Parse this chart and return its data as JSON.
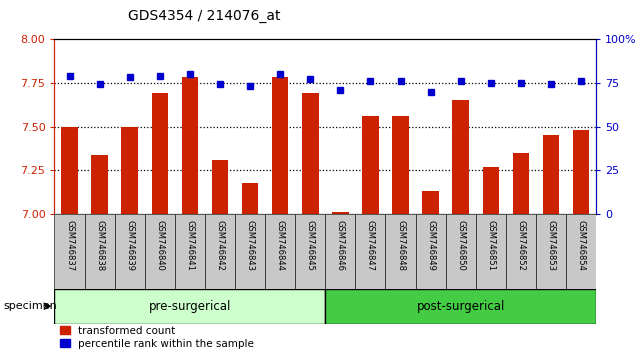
{
  "title": "GDS4354 / 214076_at",
  "samples": [
    "GSM746837",
    "GSM746838",
    "GSM746839",
    "GSM746840",
    "GSM746841",
    "GSM746842",
    "GSM746843",
    "GSM746844",
    "GSM746845",
    "GSM746846",
    "GSM746847",
    "GSM746848",
    "GSM746849",
    "GSM746850",
    "GSM746851",
    "GSM746852",
    "GSM746853",
    "GSM746854"
  ],
  "bar_values": [
    7.5,
    7.34,
    7.5,
    7.69,
    7.78,
    7.31,
    7.18,
    7.78,
    7.69,
    7.01,
    7.56,
    7.56,
    7.13,
    7.65,
    7.27,
    7.35,
    7.45,
    7.48
  ],
  "percentile_values": [
    79,
    74,
    78,
    79,
    80,
    74,
    73,
    80,
    77,
    71,
    76,
    76,
    70,
    76,
    75,
    75,
    74,
    76
  ],
  "pre_surgical_count": 9,
  "ylim_left": [
    7.0,
    8.0
  ],
  "ylim_right": [
    0,
    100
  ],
  "yticks_left": [
    7.0,
    7.25,
    7.5,
    7.75,
    8.0
  ],
  "yticks_right": [
    0,
    25,
    50,
    75,
    100
  ],
  "bar_color": "#CC2200",
  "dot_color": "#0000CC",
  "pre_color": "#CCFFCC",
  "post_color": "#44CC44",
  "left_axis_color": "#CC2200",
  "right_axis_color": "#0000CC",
  "bar_width": 0.55,
  "pre_label": "pre-surgerical",
  "post_label": "post-surgerical",
  "legend1": "transformed count",
  "legend2": "percentile rank within the sample",
  "specimen_label": "specimen"
}
